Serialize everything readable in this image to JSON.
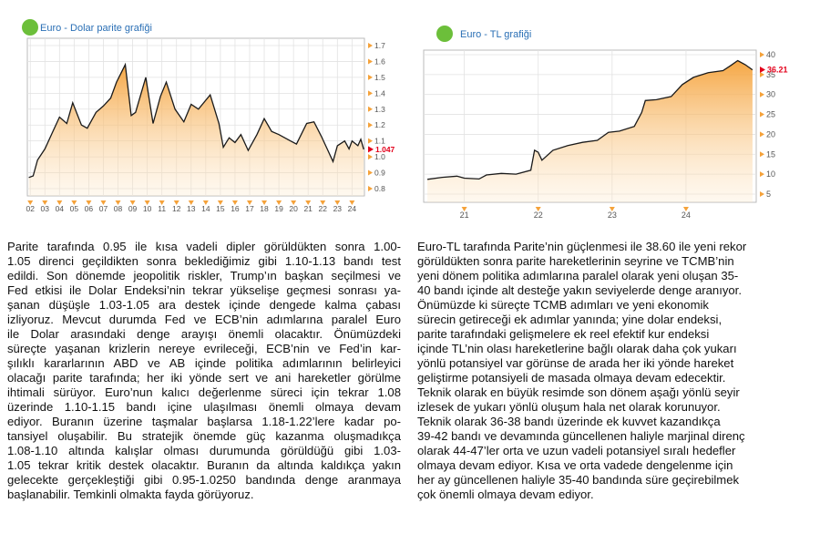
{
  "chart_data": [
    {
      "type": "line",
      "title": "Euro - Dolar parite grafiği",
      "x": [
        1.9,
        2.2,
        2.5,
        3.0,
        3.5,
        4.0,
        4.5,
        4.9,
        5.5,
        5.9,
        6.5,
        7.0,
        7.5,
        7.9,
        8.5,
        8.9,
        9.2,
        9.9,
        10.4,
        10.9,
        11.3,
        11.9,
        12.5,
        13.0,
        13.5,
        14.3,
        14.9,
        15.2,
        15.6,
        16.0,
        16.4,
        16.9,
        17.5,
        18.0,
        18.5,
        19.0,
        19.8,
        20.2,
        20.9,
        21.4,
        21.9,
        22.3,
        22.7,
        23.0,
        23.5,
        23.8,
        24.0,
        24.4,
        24.6,
        24.8
      ],
      "values": [
        0.87,
        0.88,
        0.98,
        1.05,
        1.15,
        1.25,
        1.21,
        1.34,
        1.2,
        1.18,
        1.28,
        1.32,
        1.37,
        1.47,
        1.58,
        1.26,
        1.28,
        1.5,
        1.21,
        1.38,
        1.47,
        1.3,
        1.22,
        1.33,
        1.3,
        1.39,
        1.21,
        1.06,
        1.12,
        1.09,
        1.14,
        1.04,
        1.14,
        1.24,
        1.16,
        1.14,
        1.1,
        1.08,
        1.21,
        1.22,
        1.13,
        1.05,
        0.97,
        1.07,
        1.1,
        1.05,
        1.1,
        1.07,
        1.11,
        1.047
      ],
      "color": "#1a1a1a",
      "fill_color": "#f5a23a",
      "xlim": [
        1.8,
        24.85
      ],
      "xticks": [
        {
          "value": 2,
          "label": "02"
        },
        {
          "value": 3,
          "label": "03"
        },
        {
          "value": 4,
          "label": "04"
        },
        {
          "value": 5,
          "label": "05"
        },
        {
          "value": 6,
          "label": "06"
        },
        {
          "value": 7,
          "label": "07"
        },
        {
          "value": 8,
          "label": "08"
        },
        {
          "value": 9,
          "label": "09"
        },
        10,
        11,
        12,
        13,
        14,
        15,
        16,
        17,
        18,
        19,
        20,
        21,
        22,
        23,
        24
      ],
      "ylim": [
        0.754,
        1.746
      ],
      "yticks": [
        0.8,
        0.9,
        {
          "value": 1,
          "label": "1.0"
        },
        1.1,
        1.2,
        1.3,
        1.4,
        1.5,
        1.6,
        1.7
      ],
      "last_value": 1.047,
      "last_value_color": "#e3001b",
      "grid": true
    },
    {
      "type": "line",
      "title": "Euro - TL grafiği",
      "x": [
        20.5,
        20.7,
        20.9,
        21.0,
        21.2,
        21.3,
        21.5,
        21.7,
        21.9,
        21.95,
        22.0,
        22.05,
        22.2,
        22.4,
        22.6,
        22.8,
        22.95,
        23.1,
        23.3,
        23.4,
        23.45,
        23.6,
        23.8,
        23.95,
        24.1,
        24.3,
        24.5,
        24.6,
        24.7,
        24.8,
        24.9
      ],
      "values": [
        8.7,
        9.2,
        9.5,
        9.0,
        8.8,
        9.8,
        10.2,
        10.0,
        11,
        16,
        15.5,
        13.5,
        16.0,
        17.2,
        18.0,
        18.5,
        20.5,
        20.8,
        22,
        25.5,
        28.5,
        28.7,
        29.5,
        32.5,
        34.3,
        35.5,
        36.0,
        37.2,
        38.5,
        37.5,
        36.21
      ],
      "color": "#1a1a1a",
      "fill_color": "#f5a23a",
      "xlim": [
        20.45,
        24.95
      ],
      "xticks": [
        21,
        22,
        23,
        24
      ],
      "ylim": [
        2.94,
        41.14
      ],
      "yticks": [
        5,
        10,
        15,
        20,
        25,
        30,
        35,
        40
      ],
      "last_value": 36.21,
      "last_value_color": "#e3001b",
      "grid": true
    }
  ],
  "left_text": [
    "Parite tarafında 0.95 ile kısa vadeli dipler görüldükten sonra 1.00-",
    "1.05 direnci geçildikten sonra beklediğimiz gibi 1.10-1.13 bandı test",
    "edildi. Son dönemde jeopolitik riskler, Trump’ın başkan seçilmesi ve",
    "Fed etkisi ile Dolar Endeksi’nin tekrar yükselişe geçmesi sonrası ya-",
    "şanan düşüşle 1.03-1.05 ara destek içinde dengede kalma çabası",
    "izliyoruz. Mevcut durumda Fed ve ECB’nin adımlarına paralel Euro",
    "ile Dolar arasındaki denge arayışı önemli olacaktır. Önümüzdeki",
    "süreçte yaşanan krizlerin nereye evrileceği, ECB’nin ve Fed’in kar-",
    "şılıklı kararlarının ABD ve AB içinde politika adımlarının  belirleyici",
    "olacağı parite tarafında; her iki yönde sert ve ani hareketler görülme",
    "ihtimali sürüyor. Euro’nun kalıcı değerlenme süreci için tekrar 1.08",
    "üzerinde 1.10-1.15 bandı içine ulaşılması önemli olmaya devam",
    "ediyor. Buranın üzerine taşmalar başlarsa 1.18-1.22’lere kadar po-",
    "tansiyel oluşabilir. Bu stratejik önemde güç kazanma oluşmadıkça",
    "1.08-1.10 altında kalışlar olması durumunda görüldüğü gibi 1.03-",
    "1.05 tekrar kritik destek olacaktır. Buranın da altında kaldıkça yakın",
    "gelecekte gerçekleştiği gibi 0.95-1.0250 bandında denge aranmaya",
    "başlanabilir. Temkinli olmakta fayda görüyoruz."
  ],
  "right_text": [
    "Euro-TL tarafında Parite’nin güçlenmesi ile 38.60 ile yeni rekor",
    "görüldükten sonra parite hareketlerinin seyrine ve TCMB’nin",
    "yeni dönem politika adımlarına paralel olarak yeni oluşan 35-",
    "40 bandı içinde alt desteğe yakın seviyelerde denge aranıyor.",
    "Önümüzde ki süreçte TCMB adımları ve yeni ekonomik",
    "sürecin getireceği ek adımlar yanında; yine dolar endeksi,",
    "parite tarafındaki gelişmelere ek reel efektif kur endeksi",
    "içinde TL’nin olası hareketlerine bağlı olarak daha çok yukarı",
    "yönlü potansiyel var görünse de arada her iki yönde hareket",
    "geliştirme potansiyeli de masada olmaya devam edecektir.",
    "Teknik olarak en büyük resimde son dönem aşağı yönlü seyir",
    "izlesek de yukarı yönlü oluşum hala net olarak korunuyor.",
    "Teknik olarak 36-38 bandı üzerinde ek kuvvet kazandıkça",
    "39-42 bandı ve devamında güncellenen haliyle marjinal direnç",
    "olarak 44-47’ler orta ve uzun vadeli potansiyel sıralı hedefler",
    "olmaya devam ediyor. Kısa ve orta vadede dengelenme için",
    "her ay güncellenen haliyle 35-40 bandında süre geçirebilmek",
    "çok önemli olmaya devam ediyor."
  ]
}
